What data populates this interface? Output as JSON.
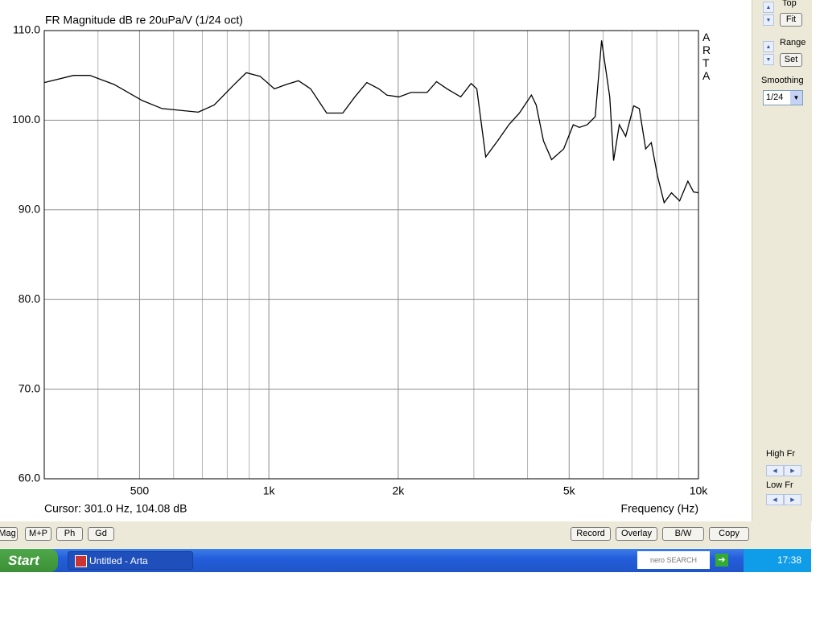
{
  "chart_data": {
    "type": "line",
    "title": "FR Magnitude dB re 20uPa/V (1/24 oct)",
    "x_label": "Frequency (Hz)",
    "side_label": "ARTA",
    "x_log": true,
    "grid": true,
    "xlim": [
      300,
      10000
    ],
    "xticks": [
      500,
      {
        "value": 1000,
        "label": "1k"
      },
      {
        "value": 2000,
        "label": "2k"
      },
      {
        "value": 5000,
        "label": "5k"
      },
      {
        "value": 10000,
        "label": "10k"
      }
    ],
    "x_minor_grid": [
      400,
      600,
      700,
      800,
      900,
      3000,
      4000,
      6000,
      7000,
      8000,
      9000
    ],
    "ylim": [
      60,
      110
    ],
    "yticks": [
      {
        "value": 60,
        "label": "60.0"
      },
      {
        "value": 70,
        "label": "70.0"
      },
      {
        "value": 80,
        "label": "80.0"
      },
      {
        "value": 90,
        "label": "90.0"
      },
      {
        "value": 100,
        "label": "100.0"
      },
      {
        "value": 110,
        "label": "110.0"
      }
    ],
    "x": [
      300,
      351,
      383,
      436,
      507,
      564,
      685,
      746,
      831,
      886,
      954,
      1030,
      1099,
      1172,
      1251,
      1363,
      1486,
      1585,
      1690,
      1803,
      1883,
      2008,
      2142,
      2237,
      2335,
      2456,
      2599,
      2796,
      2957,
      3048,
      3197,
      3408,
      3620,
      3830,
      4084,
      4190,
      4357,
      4551,
      4856,
      5111,
      5282,
      5511,
      5750,
      5950,
      6215,
      6345,
      6542,
      6770,
      7066,
      7282,
      7535,
      7765,
      8036,
      8320,
      8654,
      9040,
      9448,
      9740,
      10000
    ],
    "series": [
      {
        "name": "FR",
        "color": "#000000",
        "values": [
          104.2,
          105.0,
          105.0,
          104.0,
          102.2,
          101.3,
          100.9,
          101.7,
          104.0,
          105.3,
          104.9,
          103.5,
          104.0,
          104.4,
          103.5,
          100.8,
          100.8,
          102.6,
          104.2,
          103.5,
          102.8,
          102.6,
          103.1,
          103.1,
          103.1,
          104.3,
          103.5,
          102.6,
          104.1,
          103.5,
          95.9,
          97.7,
          99.5,
          100.8,
          102.8,
          101.7,
          97.7,
          95.6,
          96.8,
          99.5,
          99.2,
          99.5,
          100.4,
          108.9,
          102.6,
          95.5,
          99.5,
          98.2,
          101.6,
          101.3,
          96.8,
          97.5,
          93.7,
          90.8,
          91.9,
          91.0,
          93.2,
          92.0,
          91.9
        ]
      }
    ]
  },
  "ui": {
    "cursor": "Cursor: 301.0 Hz, 104.08 dB",
    "side_panel": {
      "top": "Top",
      "fit": "Fit",
      "range": "Range",
      "set": "Set",
      "smoothing": "Smoothing",
      "smoothing_value": "1/24",
      "high_fr": "High Fr",
      "low_fr": "Low Fr"
    },
    "left_buttons": [
      "Mag",
      "M+P",
      "Ph",
      "Gd"
    ],
    "right_buttons": [
      "Record",
      "Overlay",
      "B/W",
      "Copy"
    ],
    "taskbar": {
      "start": "Start",
      "window": "Untitled - Arta",
      "search": "nero SEARCH",
      "clock": "17:38"
    }
  }
}
